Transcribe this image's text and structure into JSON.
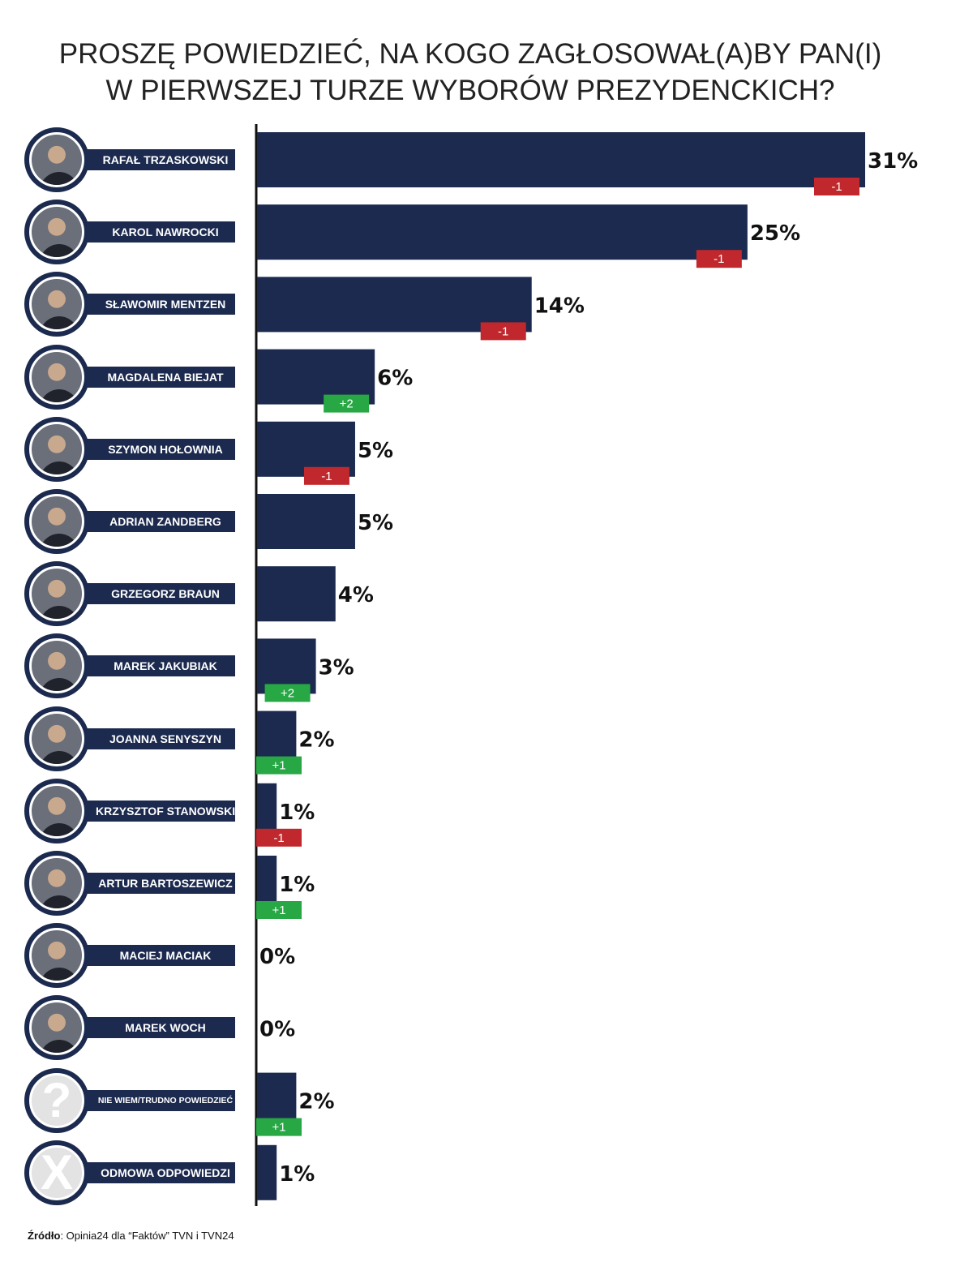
{
  "title": {
    "line1": "PROSZĘ POWIEDZIEĆ, NA KOGO ZAGŁOSOWAŁ(A)BY PAN(I)",
    "line2": "W PIERWSZEJ TURZE WYBORÓW PREZYDENCKICH?"
  },
  "colors": {
    "bar": "#1b2a4e",
    "negative": "#c0282d",
    "positive": "#27a844"
  },
  "chart_data": {
    "type": "bar",
    "orientation": "horizontal",
    "categories": [
      "RAFAŁ TRZASKOWSKI",
      "KAROL NAWROCKI",
      "SŁAWOMIR MENTZEN",
      "MAGDALENA BIEJAT",
      "SZYMON HOŁOWNIA",
      "ADRIAN ZANDBERG",
      "GRZEGORZ BRAUN",
      "MAREK JAKUBIAK",
      "JOANNA SENYSZYN",
      "KRZYSZTOF STANOWSKI",
      "ARTUR BARTOSZEWICZ",
      "MACIEJ MACIAK",
      "MAREK WOCH",
      "NIE WIEM/TRUDNO POWIEDZIEĆ",
      "ODMOWA ODPOWIEDZI"
    ],
    "values": [
      31,
      25,
      14,
      6,
      5,
      5,
      4,
      3,
      2,
      1,
      1,
      0,
      0,
      2,
      1
    ],
    "value_labels": [
      "31%",
      "25%",
      "14%",
      "6%",
      "5%",
      "5%",
      "4%",
      "3%",
      "2%",
      "1%",
      "1%",
      "0%",
      "0%",
      "2%",
      "1%"
    ],
    "changes": [
      "-1",
      "-1",
      "-1",
      "+2",
      "-1",
      "",
      "",
      "+2",
      "+1",
      "-1",
      "+1",
      "",
      "",
      "+1",
      ""
    ],
    "xlim": [
      0,
      31
    ],
    "grid": false,
    "legend": "none"
  },
  "avatars": [
    {
      "icon": "person-photo"
    },
    {
      "icon": "person-photo"
    },
    {
      "icon": "person-photo"
    },
    {
      "icon": "person-photo"
    },
    {
      "icon": "person-photo"
    },
    {
      "icon": "person-photo"
    },
    {
      "icon": "person-photo"
    },
    {
      "icon": "person-photo"
    },
    {
      "icon": "person-photo"
    },
    {
      "icon": "person-photo"
    },
    {
      "icon": "person-photo"
    },
    {
      "icon": "person-photo"
    },
    {
      "icon": "person-photo"
    },
    {
      "icon": "question-mark-icon",
      "glyph": "?"
    },
    {
      "icon": "x-mark-icon",
      "glyph": "X"
    }
  ],
  "source": {
    "label": "Źródło",
    "text": ": Opinia24 dla “Faktów” TVN i TVN24"
  }
}
